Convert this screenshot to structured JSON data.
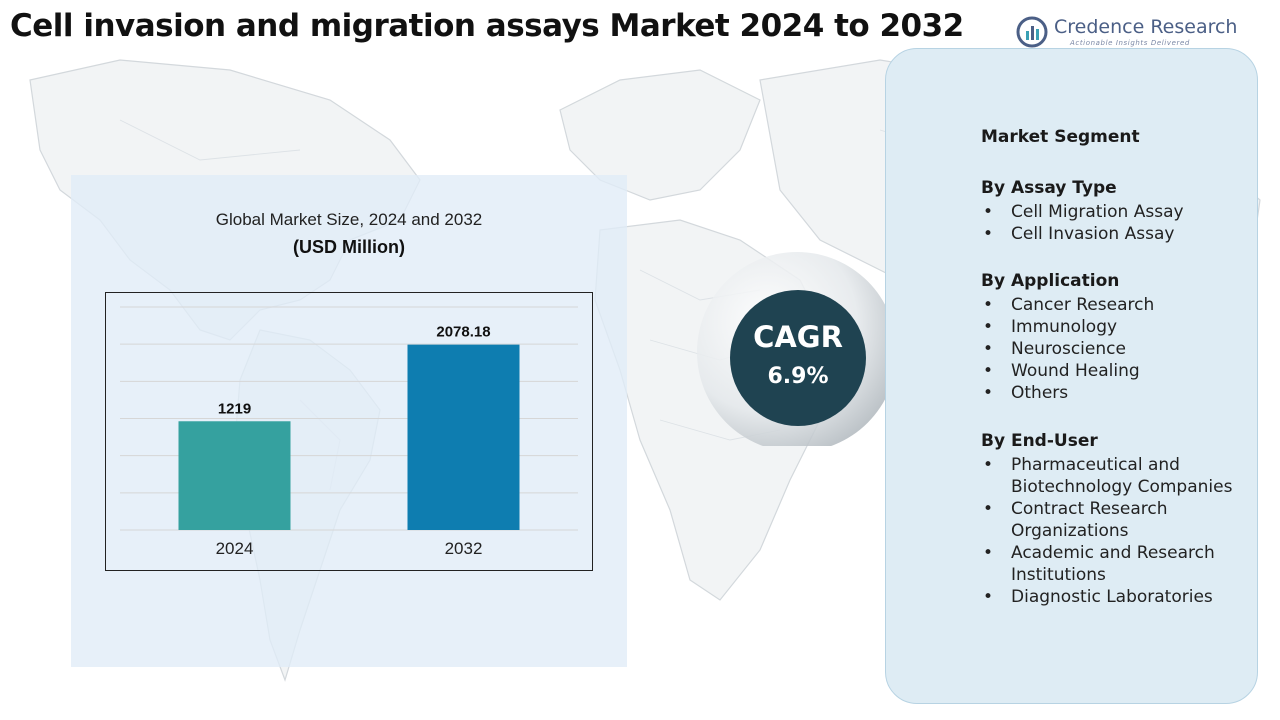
{
  "title": "Cell invasion and migration assays Market 2024 to 2032",
  "logo": {
    "name": "Credence Research",
    "tagline": "Actionable Insights Delivered",
    "icon": "credence-research-logo-icon"
  },
  "chart_data": {
    "type": "bar",
    "title": "Global Market Size, 2024 and 2032",
    "unit": "(USD Million)",
    "categories": [
      "2024",
      "2032"
    ],
    "values": [
      1219,
      2078.18
    ],
    "value_labels": [
      "1219",
      "2078.18"
    ],
    "ylim": [
      0,
      2500
    ],
    "grid": true,
    "colors": [
      "#35a19f",
      "#0e7db0"
    ]
  },
  "cagr": {
    "label": "CAGR",
    "value": "6.9%"
  },
  "segments": {
    "heading": "Market Segment",
    "groups": [
      {
        "title": "By Assay Type",
        "items": [
          "Cell Migration Assay",
          "Cell Invasion Assay"
        ]
      },
      {
        "title": "By Application",
        "items": [
          "Cancer Research",
          "Immunology",
          "Neuroscience",
          "Wound Healing",
          "Others"
        ]
      },
      {
        "title": "By End-User",
        "items": [
          "Pharmaceutical and Biotechnology Companies",
          "Contract Research Organizations",
          "Academic and Research Institutions",
          "Diagnostic Laboratories"
        ]
      }
    ]
  },
  "colors": {
    "panel": "#e0ecf7",
    "cagr_circle": "#1f4351",
    "segment_panel": "#deecf4"
  }
}
